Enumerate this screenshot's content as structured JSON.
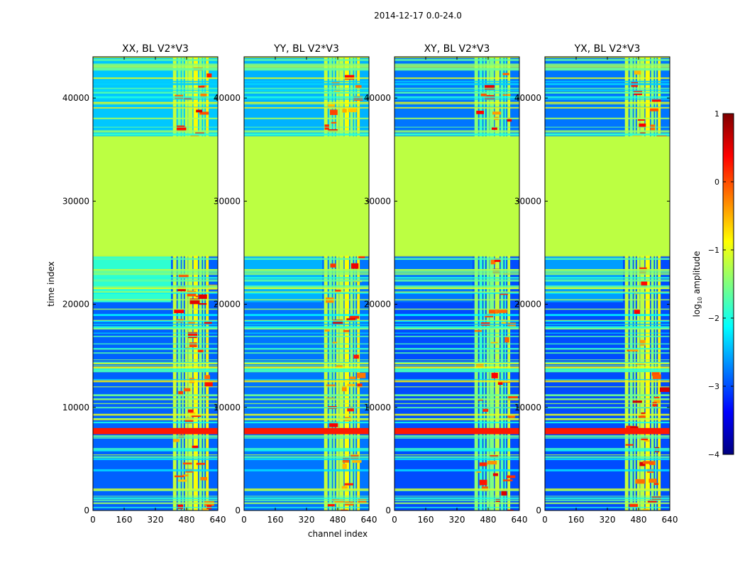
{
  "figure_title": "2014-12-17 0.0-24.0",
  "colorbar": {
    "label_prefix": "log",
    "label_sub": "10",
    "label_suffix": " amplitude",
    "range": [
      -4,
      1
    ],
    "ticks": [
      "1",
      "0",
      "−1",
      "−2",
      "−3",
      "−4"
    ],
    "tick_values": [
      1,
      0,
      -1,
      -2,
      -3,
      -4
    ],
    "colormap": [
      "#00007f",
      "#0000ff",
      "#007fff",
      "#00ffff",
      "#7fff7f",
      "#ffff00",
      "#ff7f00",
      "#ff0000",
      "#7f0000"
    ]
  },
  "chart_data": {
    "type": "heatmap",
    "title": "2014-12-17 0.0-24.0",
    "xlabel": "channel index",
    "ylabel": "time index",
    "xlim": [
      0,
      640
    ],
    "ylim": [
      0,
      44000
    ],
    "x_ticks": [
      0,
      160,
      320,
      480,
      640
    ],
    "x_tick_labels": [
      "0",
      "160",
      "320",
      "480",
      "640"
    ],
    "y_ticks": [
      0,
      10000,
      20000,
      30000,
      40000
    ],
    "y_tick_labels": [
      "0",
      "10000",
      "20000",
      "30000",
      "40000"
    ],
    "value_label": "log10 amplitude",
    "value_range": [
      -4,
      1
    ],
    "panels": [
      {
        "title": "XX, BL V2*V3",
        "background_level": -2.9,
        "upper_level": -2.4,
        "lower_block_level": -1.9
      },
      {
        "title": "YY, BL V2*V3",
        "background_level": -2.8,
        "upper_level": -2.5,
        "lower_block_level": -2.5
      },
      {
        "title": "XY, BL V2*V3",
        "background_level": -3.0,
        "upper_level": -2.8,
        "lower_block_level": -2.8
      },
      {
        "title": "YX, BL V2*V3",
        "background_level": -3.0,
        "upper_level": -2.8,
        "lower_block_level": -2.6
      }
    ],
    "flagged_region": {
      "time_range": [
        24700,
        36300
      ],
      "level": -1.2
    },
    "rfi_band": {
      "time_range": [
        7400,
        8000
      ],
      "level": 0.25
    },
    "active_channel_range": [
      410,
      590
    ]
  }
}
